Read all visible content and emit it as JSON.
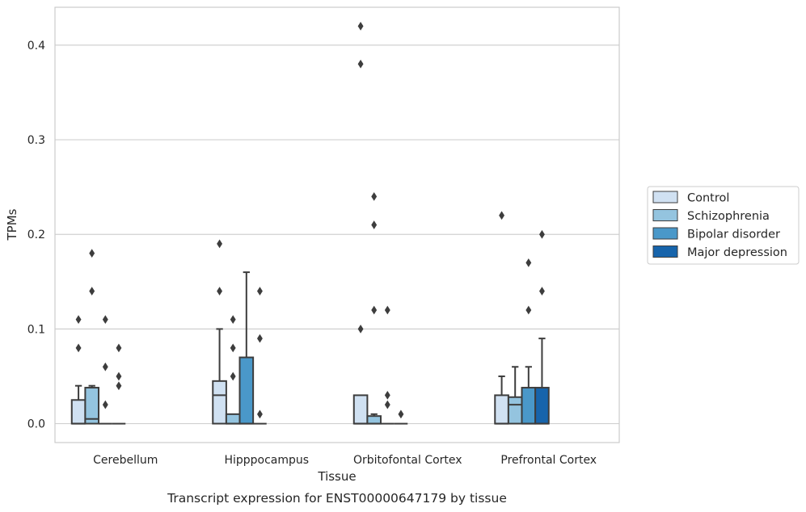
{
  "chart_data": {
    "type": "boxplot",
    "caption": "Transcript expression for ENST00000647179 by tissue",
    "xlabel": "Tissue",
    "ylabel": "TPMs",
    "ylim": [
      -0.02,
      0.44
    ],
    "yticks": [
      0.0,
      0.1,
      0.2,
      0.3,
      0.4
    ],
    "ytick_labels": [
      "0.0",
      "0.1",
      "0.2",
      "0.3",
      "0.4"
    ],
    "grid": "horizontal",
    "legend_position": "right",
    "categories": [
      "Cerebellum",
      "Hipppocampus",
      "Orbitofontal Cortex",
      "Prefrontal Cortex"
    ],
    "series": [
      {
        "name": "Control",
        "color": "#d0e1f2",
        "boxes": [
          {
            "q1": 0.0,
            "median": 0.0,
            "q3": 0.025,
            "whisker_low": 0.0,
            "whisker_high": 0.04,
            "outliers": [
              0.08,
              0.11
            ]
          },
          {
            "q1": 0.0,
            "median": 0.03,
            "q3": 0.045,
            "whisker_low": 0.0,
            "whisker_high": 0.1,
            "outliers": [
              0.14,
              0.19
            ]
          },
          {
            "q1": 0.0,
            "median": 0.0,
            "q3": 0.03,
            "whisker_low": 0.0,
            "whisker_high": 0.03,
            "outliers": [
              0.1,
              0.38,
              0.42
            ]
          },
          {
            "q1": 0.0,
            "median": 0.0,
            "q3": 0.03,
            "whisker_low": 0.0,
            "whisker_high": 0.05,
            "outliers": [
              0.22
            ]
          }
        ]
      },
      {
        "name": "Schizophrenia",
        "color": "#94c4df",
        "boxes": [
          {
            "q1": 0.0,
            "median": 0.005,
            "q3": 0.038,
            "whisker_low": 0.0,
            "whisker_high": 0.04,
            "outliers": [
              0.14,
              0.18
            ]
          },
          {
            "q1": 0.0,
            "median": 0.0,
            "q3": 0.01,
            "whisker_low": 0.0,
            "whisker_high": 0.01,
            "outliers": [
              0.05,
              0.08,
              0.11
            ]
          },
          {
            "q1": 0.0,
            "median": 0.0,
            "q3": 0.008,
            "whisker_low": 0.0,
            "whisker_high": 0.01,
            "outliers": [
              0.12,
              0.21,
              0.24
            ]
          },
          {
            "q1": 0.0,
            "median": 0.02,
            "q3": 0.028,
            "whisker_low": 0.0,
            "whisker_high": 0.06,
            "outliers": []
          }
        ]
      },
      {
        "name": "Bipolar disorder",
        "color": "#4a98c9",
        "boxes": [
          {
            "q1": 0.0,
            "median": 0.0,
            "q3": 0.0,
            "whisker_low": 0.0,
            "whisker_high": 0.0,
            "outliers": [
              0.02,
              0.06,
              0.11
            ]
          },
          {
            "q1": 0.0,
            "median": 0.0,
            "q3": 0.07,
            "whisker_low": 0.0,
            "whisker_high": 0.16,
            "outliers": []
          },
          {
            "q1": 0.0,
            "median": 0.0,
            "q3": 0.0,
            "whisker_low": 0.0,
            "whisker_high": 0.0,
            "outliers": [
              0.02,
              0.03,
              0.12
            ]
          },
          {
            "q1": 0.0,
            "median": 0.0,
            "q3": 0.038,
            "whisker_low": 0.0,
            "whisker_high": 0.06,
            "outliers": [
              0.12,
              0.17
            ]
          }
        ]
      },
      {
        "name": "Major depression",
        "color": "#1764ab",
        "boxes": [
          {
            "q1": 0.0,
            "median": 0.0,
            "q3": 0.0,
            "whisker_low": 0.0,
            "whisker_high": 0.0,
            "outliers": [
              0.04,
              0.05,
              0.08
            ]
          },
          {
            "q1": 0.0,
            "median": 0.0,
            "q3": 0.0,
            "whisker_low": 0.0,
            "whisker_high": 0.0,
            "outliers": [
              0.01,
              0.09,
              0.14
            ]
          },
          {
            "q1": 0.0,
            "median": 0.0,
            "q3": 0.0,
            "whisker_low": 0.0,
            "whisker_high": 0.0,
            "outliers": [
              0.01
            ]
          },
          {
            "q1": 0.0,
            "median": 0.0,
            "q3": 0.038,
            "whisker_low": 0.0,
            "whisker_high": 0.09,
            "outliers": [
              0.14,
              0.2
            ]
          }
        ]
      }
    ]
  }
}
